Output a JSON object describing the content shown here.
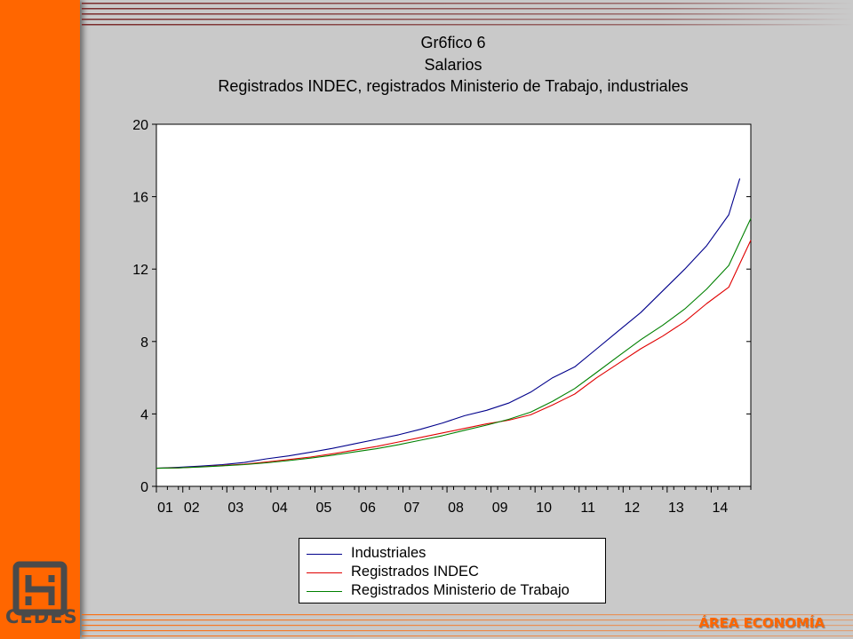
{
  "slide": {
    "logo_text": "CEDES",
    "footer_label": "ÁREA ECONOMÍA",
    "colors": {
      "sidebar": "#ff6600",
      "background": "#c9c9c9",
      "stripe": "#8a3a3a"
    }
  },
  "chart_data": {
    "type": "line",
    "title": "Gr6fico 6",
    "subtitle": "Salarios",
    "subtitle2": "Registrados INDEC, registrados Ministerio de Trabajo, industriales",
    "xlabel": "",
    "ylabel": "",
    "xlim": [
      2001.0,
      2014.5
    ],
    "ylim": [
      0,
      20
    ],
    "yticks": [
      0,
      4,
      8,
      12,
      16,
      20
    ],
    "xticks": [
      {
        "label": "01",
        "x": 2001.0
      },
      {
        "label": "02",
        "x": 2001.6
      },
      {
        "label": "03",
        "x": 2002.6
      },
      {
        "label": "04",
        "x": 2003.6
      },
      {
        "label": "05",
        "x": 2004.6
      },
      {
        "label": "06",
        "x": 2005.6
      },
      {
        "label": "07",
        "x": 2006.6
      },
      {
        "label": "08",
        "x": 2007.6
      },
      {
        "label": "09",
        "x": 2008.6
      },
      {
        "label": "10",
        "x": 2009.6
      },
      {
        "label": "11",
        "x": 2010.6
      },
      {
        "label": "12",
        "x": 2011.6
      },
      {
        "label": "13",
        "x": 2012.6
      },
      {
        "label": "14",
        "x": 2013.6
      }
    ],
    "grid": false,
    "legend_position": "bottom-center",
    "series": [
      {
        "name": "Industriales",
        "color": "#00008b",
        "x": [
          2001.0,
          2001.5,
          2002.0,
          2002.5,
          2003.0,
          2003.5,
          2004.0,
          2004.5,
          2005.0,
          2005.5,
          2006.0,
          2006.5,
          2007.0,
          2007.5,
          2008.0,
          2008.5,
          2009.0,
          2009.5,
          2010.0,
          2010.5,
          2011.0,
          2011.5,
          2012.0,
          2012.5,
          2013.0,
          2013.5,
          2014.0,
          2014.25
        ],
        "values": [
          1.0,
          1.05,
          1.12,
          1.2,
          1.32,
          1.52,
          1.68,
          1.88,
          2.1,
          2.35,
          2.6,
          2.85,
          3.15,
          3.5,
          3.9,
          4.2,
          4.6,
          5.2,
          6.0,
          6.6,
          7.6,
          8.6,
          9.6,
          10.8,
          12.0,
          13.3,
          15.0,
          17.0
        ]
      },
      {
        "name": "Registrados INDEC",
        "color": "#e00000",
        "x": [
          2001.0,
          2001.5,
          2002.0,
          2002.5,
          2003.0,
          2003.5,
          2004.0,
          2004.5,
          2005.0,
          2005.5,
          2006.0,
          2006.5,
          2007.0,
          2007.5,
          2008.0,
          2008.5,
          2009.0,
          2009.5,
          2010.0,
          2010.5,
          2011.0,
          2011.5,
          2012.0,
          2012.5,
          2013.0,
          2013.5,
          2014.0,
          2014.5
        ],
        "values": [
          1.0,
          1.02,
          1.08,
          1.15,
          1.22,
          1.35,
          1.48,
          1.62,
          1.8,
          2.0,
          2.2,
          2.45,
          2.7,
          2.95,
          3.2,
          3.45,
          3.65,
          3.95,
          4.5,
          5.1,
          6.0,
          6.8,
          7.6,
          8.3,
          9.1,
          10.1,
          11.0,
          13.6
        ]
      },
      {
        "name": "Registrados Ministerio de Trabajo",
        "color": "#008000",
        "x": [
          2001.0,
          2001.5,
          2002.0,
          2002.5,
          2003.0,
          2003.5,
          2004.0,
          2004.5,
          2005.0,
          2005.5,
          2006.0,
          2006.5,
          2007.0,
          2007.5,
          2008.0,
          2008.5,
          2009.0,
          2009.5,
          2010.0,
          2010.5,
          2011.0,
          2011.5,
          2012.0,
          2012.5,
          2013.0,
          2013.5,
          2014.0,
          2014.5
        ],
        "values": [
          1.0,
          1.02,
          1.07,
          1.13,
          1.2,
          1.3,
          1.42,
          1.56,
          1.72,
          1.9,
          2.08,
          2.3,
          2.55,
          2.8,
          3.1,
          3.38,
          3.7,
          4.1,
          4.7,
          5.4,
          6.3,
          7.2,
          8.1,
          8.9,
          9.8,
          10.9,
          12.2,
          14.8
        ]
      }
    ]
  }
}
